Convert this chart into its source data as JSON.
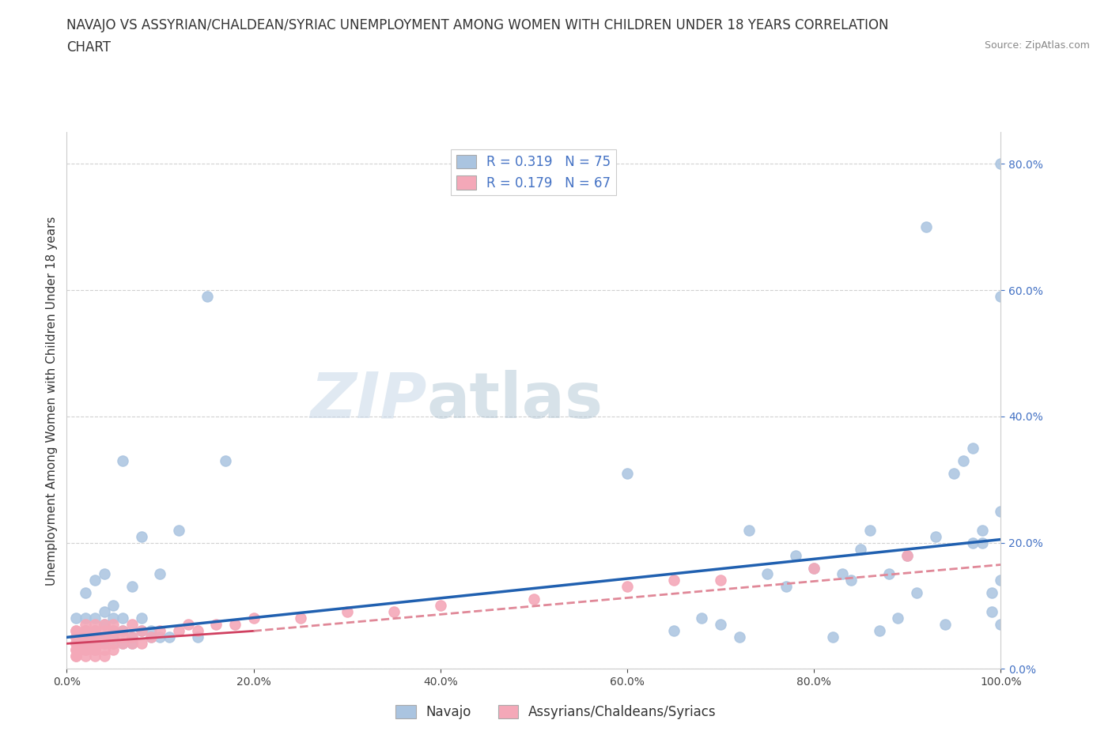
{
  "title_line1": "NAVAJO VS ASSYRIAN/CHALDEAN/SYRIAC UNEMPLOYMENT AMONG WOMEN WITH CHILDREN UNDER 18 YEARS CORRELATION",
  "title_line2": "CHART",
  "source_text": "Source: ZipAtlas.com",
  "watermark_left": "ZIP",
  "watermark_right": "atlas",
  "ylabel": "Unemployment Among Women with Children Under 18 years",
  "xlim": [
    0.0,
    1.0
  ],
  "ylim": [
    0.0,
    0.85
  ],
  "xtick_labels": [
    "0.0%",
    "20.0%",
    "40.0%",
    "60.0%",
    "80.0%",
    "100.0%"
  ],
  "xtick_vals": [
    0.0,
    0.2,
    0.4,
    0.6,
    0.8,
    1.0
  ],
  "ytick_labels": [
    "0.0%",
    "20.0%",
    "40.0%",
    "60.0%",
    "80.0%"
  ],
  "ytick_vals": [
    0.0,
    0.2,
    0.4,
    0.6,
    0.8
  ],
  "navajo_R": 0.319,
  "navajo_N": 75,
  "assyrian_R": 0.179,
  "assyrian_N": 67,
  "navajo_color": "#aac4e0",
  "assyrian_color": "#f4a8b8",
  "navajo_line_color": "#2060b0",
  "assyrian_line_color_solid": "#d04060",
  "assyrian_line_color_dash": "#e08898",
  "grid_color": "#cccccc",
  "background_color": "#ffffff",
  "navajo_x": [
    0.01,
    0.01,
    0.02,
    0.02,
    0.02,
    0.02,
    0.03,
    0.03,
    0.03,
    0.03,
    0.04,
    0.04,
    0.04,
    0.04,
    0.04,
    0.05,
    0.05,
    0.05,
    0.05,
    0.05,
    0.06,
    0.06,
    0.06,
    0.06,
    0.07,
    0.07,
    0.07,
    0.08,
    0.08,
    0.08,
    0.09,
    0.09,
    0.1,
    0.1,
    0.11,
    0.12,
    0.14,
    0.15,
    0.17,
    0.6,
    0.65,
    0.68,
    0.7,
    0.72,
    0.73,
    0.75,
    0.77,
    0.78,
    0.8,
    0.82,
    0.83,
    0.84,
    0.85,
    0.86,
    0.87,
    0.88,
    0.89,
    0.9,
    0.91,
    0.92,
    0.93,
    0.94,
    0.95,
    0.96,
    0.97,
    0.97,
    0.98,
    0.98,
    0.99,
    0.99,
    1.0,
    1.0,
    1.0,
    1.0,
    1.0
  ],
  "navajo_y": [
    0.05,
    0.08,
    0.04,
    0.06,
    0.08,
    0.12,
    0.05,
    0.06,
    0.08,
    0.14,
    0.04,
    0.05,
    0.07,
    0.09,
    0.15,
    0.04,
    0.05,
    0.06,
    0.08,
    0.1,
    0.04,
    0.06,
    0.08,
    0.33,
    0.04,
    0.05,
    0.13,
    0.06,
    0.08,
    0.21,
    0.05,
    0.06,
    0.05,
    0.15,
    0.05,
    0.22,
    0.05,
    0.59,
    0.33,
    0.31,
    0.06,
    0.08,
    0.07,
    0.05,
    0.22,
    0.15,
    0.13,
    0.18,
    0.16,
    0.05,
    0.15,
    0.14,
    0.19,
    0.22,
    0.06,
    0.15,
    0.08,
    0.18,
    0.12,
    0.7,
    0.21,
    0.07,
    0.31,
    0.33,
    0.2,
    0.35,
    0.2,
    0.22,
    0.09,
    0.12,
    0.59,
    0.25,
    0.07,
    0.14,
    0.8
  ],
  "assyrian_x": [
    0.01,
    0.01,
    0.01,
    0.01,
    0.01,
    0.01,
    0.01,
    0.01,
    0.01,
    0.01,
    0.02,
    0.02,
    0.02,
    0.02,
    0.02,
    0.02,
    0.02,
    0.02,
    0.02,
    0.02,
    0.03,
    0.03,
    0.03,
    0.03,
    0.03,
    0.03,
    0.03,
    0.03,
    0.03,
    0.03,
    0.04,
    0.04,
    0.04,
    0.04,
    0.04,
    0.04,
    0.05,
    0.05,
    0.05,
    0.05,
    0.05,
    0.06,
    0.06,
    0.06,
    0.07,
    0.07,
    0.07,
    0.08,
    0.08,
    0.09,
    0.1,
    0.12,
    0.13,
    0.14,
    0.16,
    0.18,
    0.2,
    0.25,
    0.3,
    0.35,
    0.4,
    0.5,
    0.6,
    0.65,
    0.7,
    0.8,
    0.9
  ],
  "assyrian_y": [
    0.02,
    0.02,
    0.03,
    0.03,
    0.04,
    0.04,
    0.05,
    0.05,
    0.06,
    0.06,
    0.02,
    0.03,
    0.03,
    0.04,
    0.04,
    0.05,
    0.05,
    0.06,
    0.06,
    0.07,
    0.02,
    0.03,
    0.03,
    0.04,
    0.04,
    0.05,
    0.05,
    0.06,
    0.06,
    0.07,
    0.02,
    0.03,
    0.04,
    0.05,
    0.06,
    0.07,
    0.03,
    0.04,
    0.05,
    0.06,
    0.07,
    0.04,
    0.05,
    0.06,
    0.04,
    0.05,
    0.07,
    0.04,
    0.06,
    0.05,
    0.06,
    0.06,
    0.07,
    0.06,
    0.07,
    0.07,
    0.08,
    0.08,
    0.09,
    0.09,
    0.1,
    0.11,
    0.13,
    0.14,
    0.14,
    0.16,
    0.18
  ],
  "navajo_line_x0": 0.0,
  "navajo_line_y0": 0.05,
  "navajo_line_x1": 1.0,
  "navajo_line_y1": 0.205,
  "assyrian_line_solid_x0": 0.0,
  "assyrian_line_solid_y0": 0.04,
  "assyrian_line_solid_x1": 0.2,
  "assyrian_line_solid_y1": 0.06,
  "assyrian_line_dash_x0": 0.2,
  "assyrian_line_dash_y0": 0.06,
  "assyrian_line_dash_x1": 1.0,
  "assyrian_line_dash_y1": 0.165,
  "legend_box_color": "#ffffff",
  "legend_border_color": "#cccccc",
  "title_fontsize": 12,
  "axis_label_fontsize": 11,
  "tick_fontsize": 10,
  "legend_fontsize": 12,
  "bottom_legend_labels": [
    "Navajo",
    "Assyrians/Chaldeans/Syriacs"
  ]
}
